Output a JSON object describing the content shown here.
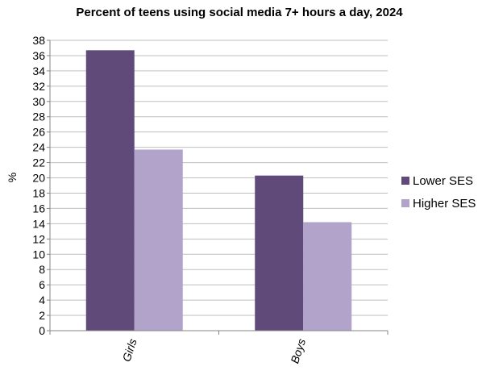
{
  "chart_data": {
    "type": "bar",
    "title": "Percent of teens using social media 7+ hours a day, 2024",
    "xlabel": "",
    "ylabel": "%",
    "categories": [
      "Girls",
      "Boys"
    ],
    "series": [
      {
        "name": "Lower SES",
        "values": [
          36.7,
          20.3
        ],
        "color": "#5f4a7a"
      },
      {
        "name": "Higher SES",
        "values": [
          23.7,
          14.2
        ],
        "color": "#b1a3c9"
      }
    ],
    "ylim": [
      0,
      38
    ],
    "yticks": [
      0,
      2,
      4,
      6,
      8,
      10,
      12,
      14,
      16,
      18,
      20,
      22,
      24,
      26,
      28,
      30,
      32,
      34,
      36,
      38
    ],
    "grid": true,
    "legend": "right"
  }
}
